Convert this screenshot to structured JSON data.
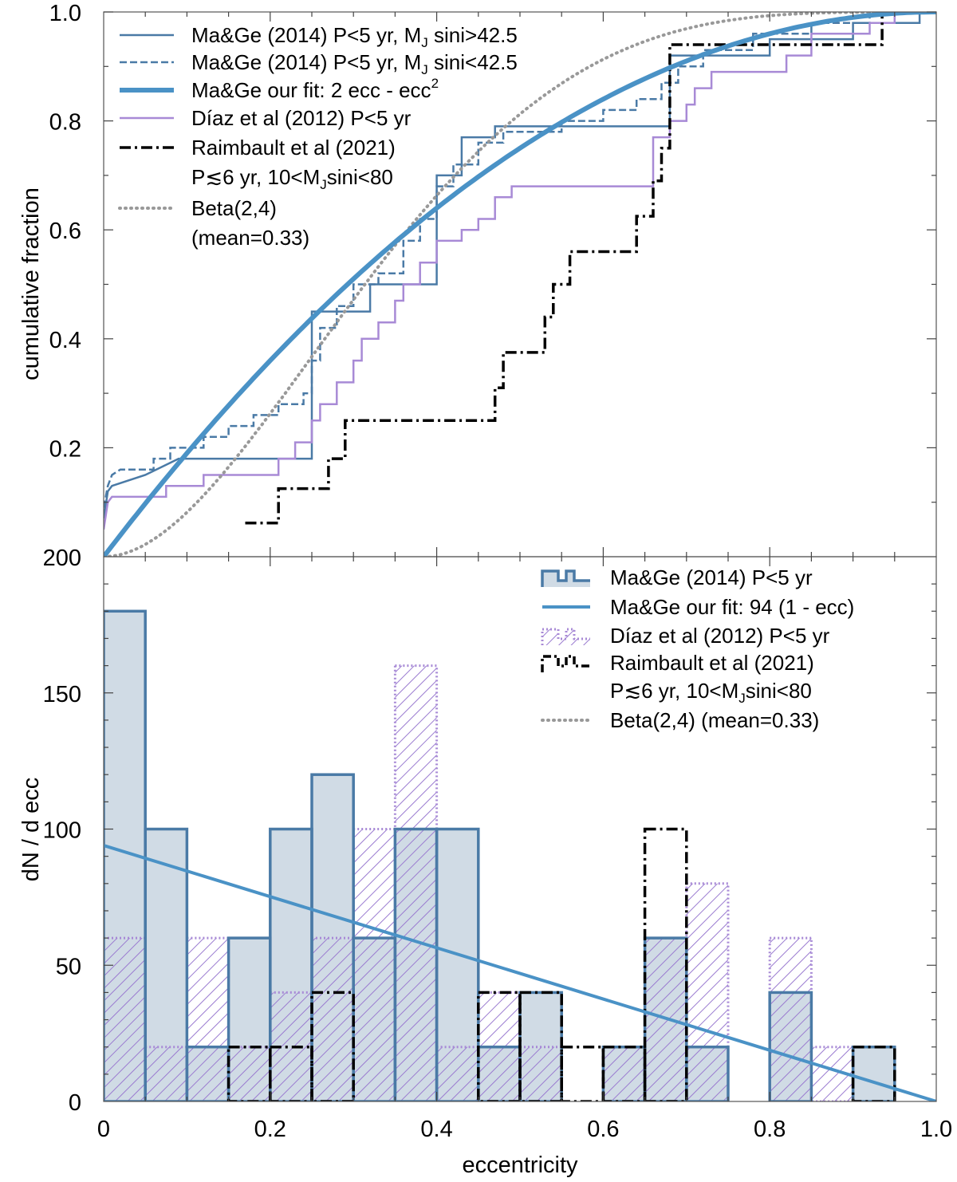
{
  "chart_data": [
    {
      "type": "line",
      "panel": "top",
      "ylabel": "cumulative fraction",
      "xlim": [
        0,
        1
      ],
      "ylim": [
        0,
        1
      ],
      "yticks": [
        "1.0",
        "0.8",
        "0.6",
        "0.4",
        "0.2"
      ],
      "legend_position": "top-left",
      "legend": [
        {
          "id": "mage_hi",
          "text": "Ma&Ge (2014)     P<5 yr, M",
          "sub": "J",
          "text2": " sini>42.5"
        },
        {
          "id": "mage_lo",
          "text": "Ma&Ge (2014)     P<5 yr, M",
          "sub": "J",
          "text2": " sini<42.5"
        },
        {
          "id": "mage_fit",
          "text": "Ma&Ge our fit: 2 ecc - ecc",
          "sup": "2"
        },
        {
          "id": "diaz",
          "text": "Díaz et al (2012) P<5 yr"
        },
        {
          "id": "raim",
          "text": "Raimbault et al (2021)"
        },
        {
          "id": "raim2",
          "text": "P≲6 yr, 10<M",
          "sub": "J",
          "text2": "sini<80"
        },
        {
          "id": "beta",
          "text": "Beta(2,4)"
        },
        {
          "id": "beta2",
          "text": "(mean=0.33)"
        }
      ],
      "series": [
        {
          "name": "Ma&Ge (2014) P<5 yr, MJ sini>42.5",
          "style": "solid",
          "color": "#4a7aa6",
          "steps": [
            [
              0,
              0.07
            ],
            [
              0.005,
              0.12
            ],
            [
              0.01,
              0.13
            ],
            [
              0.05,
              0.15
            ],
            [
              0.09,
              0.18
            ],
            [
              0.25,
              0.18
            ],
            [
              0.25,
              0.45
            ],
            [
              0.32,
              0.45
            ],
            [
              0.32,
              0.5
            ],
            [
              0.4,
              0.5
            ],
            [
              0.4,
              0.56
            ],
            [
              0.4,
              0.7
            ],
            [
              0.43,
              0.7
            ],
            [
              0.43,
              0.77
            ],
            [
              0.47,
              0.77
            ],
            [
              0.47,
              0.79
            ],
            [
              0.68,
              0.79
            ],
            [
              0.68,
              0.92
            ],
            [
              0.8,
              0.92
            ],
            [
              0.8,
              0.95
            ],
            [
              0.9,
              0.95
            ],
            [
              0.9,
              0.98
            ],
            [
              0.98,
              0.98
            ],
            [
              0.98,
              1.0
            ],
            [
              1.0,
              1.0
            ]
          ]
        },
        {
          "name": "Ma&Ge (2014) P<5 yr, MJ sini<42.5",
          "style": "dashed",
          "color": "#4a7aa6",
          "steps": [
            [
              0,
              0.09
            ],
            [
              0.005,
              0.13
            ],
            [
              0.01,
              0.15
            ],
            [
              0.02,
              0.16
            ],
            [
              0.06,
              0.16
            ],
            [
              0.06,
              0.18
            ],
            [
              0.08,
              0.18
            ],
            [
              0.08,
              0.2
            ],
            [
              0.12,
              0.2
            ],
            [
              0.12,
              0.22
            ],
            [
              0.15,
              0.22
            ],
            [
              0.15,
              0.24
            ],
            [
              0.18,
              0.24
            ],
            [
              0.18,
              0.26
            ],
            [
              0.21,
              0.26
            ],
            [
              0.21,
              0.28
            ],
            [
              0.24,
              0.28
            ],
            [
              0.24,
              0.3
            ],
            [
              0.25,
              0.3
            ],
            [
              0.25,
              0.36
            ],
            [
              0.26,
              0.36
            ],
            [
              0.26,
              0.42
            ],
            [
              0.28,
              0.42
            ],
            [
              0.28,
              0.46
            ],
            [
              0.3,
              0.46
            ],
            [
              0.3,
              0.5
            ],
            [
              0.33,
              0.5
            ],
            [
              0.33,
              0.52
            ],
            [
              0.36,
              0.52
            ],
            [
              0.36,
              0.58
            ],
            [
              0.38,
              0.58
            ],
            [
              0.38,
              0.62
            ],
            [
              0.4,
              0.62
            ],
            [
              0.4,
              0.68
            ],
            [
              0.42,
              0.68
            ],
            [
              0.42,
              0.72
            ],
            [
              0.45,
              0.72
            ],
            [
              0.45,
              0.76
            ],
            [
              0.48,
              0.76
            ],
            [
              0.48,
              0.78
            ],
            [
              0.55,
              0.78
            ],
            [
              0.55,
              0.8
            ],
            [
              0.6,
              0.8
            ],
            [
              0.6,
              0.82
            ],
            [
              0.64,
              0.82
            ],
            [
              0.64,
              0.84
            ],
            [
              0.67,
              0.84
            ],
            [
              0.67,
              0.87
            ],
            [
              0.69,
              0.87
            ],
            [
              0.69,
              0.9
            ],
            [
              0.72,
              0.9
            ],
            [
              0.72,
              0.93
            ],
            [
              0.78,
              0.93
            ],
            [
              0.78,
              0.96
            ],
            [
              0.85,
              0.96
            ],
            [
              0.85,
              0.98
            ],
            [
              0.92,
              0.98
            ],
            [
              0.92,
              1.0
            ],
            [
              1.0,
              1.0
            ]
          ]
        },
        {
          "name": "Díaz et al (2012) P<5 yr",
          "style": "solid",
          "color": "#a88ad6",
          "steps": [
            [
              0,
              0.05
            ],
            [
              0.005,
              0.1
            ],
            [
              0.01,
              0.11
            ],
            [
              0.075,
              0.11
            ],
            [
              0.075,
              0.13
            ],
            [
              0.12,
              0.13
            ],
            [
              0.12,
              0.15
            ],
            [
              0.21,
              0.15
            ],
            [
              0.21,
              0.18
            ],
            [
              0.23,
              0.18
            ],
            [
              0.23,
              0.21
            ],
            [
              0.25,
              0.21
            ],
            [
              0.25,
              0.25
            ],
            [
              0.26,
              0.25
            ],
            [
              0.26,
              0.28
            ],
            [
              0.28,
              0.28
            ],
            [
              0.28,
              0.32
            ],
            [
              0.3,
              0.32
            ],
            [
              0.3,
              0.36
            ],
            [
              0.31,
              0.36
            ],
            [
              0.31,
              0.4
            ],
            [
              0.33,
              0.4
            ],
            [
              0.33,
              0.43
            ],
            [
              0.35,
              0.43
            ],
            [
              0.35,
              0.47
            ],
            [
              0.36,
              0.47
            ],
            [
              0.36,
              0.5
            ],
            [
              0.38,
              0.5
            ],
            [
              0.38,
              0.54
            ],
            [
              0.4,
              0.54
            ],
            [
              0.4,
              0.58
            ],
            [
              0.43,
              0.58
            ],
            [
              0.43,
              0.6
            ],
            [
              0.45,
              0.6
            ],
            [
              0.45,
              0.62
            ],
            [
              0.47,
              0.62
            ],
            [
              0.47,
              0.66
            ],
            [
              0.49,
              0.66
            ],
            [
              0.49,
              0.68
            ],
            [
              0.66,
              0.68
            ],
            [
              0.66,
              0.77
            ],
            [
              0.68,
              0.77
            ],
            [
              0.68,
              0.8
            ],
            [
              0.7,
              0.8
            ],
            [
              0.7,
              0.83
            ],
            [
              0.71,
              0.83
            ],
            [
              0.71,
              0.86
            ],
            [
              0.73,
              0.86
            ],
            [
              0.73,
              0.89
            ],
            [
              0.82,
              0.89
            ],
            [
              0.82,
              0.92
            ],
            [
              0.85,
              0.92
            ],
            [
              0.85,
              0.96
            ],
            [
              0.92,
              0.96
            ],
            [
              0.92,
              0.98
            ],
            [
              0.95,
              0.98
            ],
            [
              0.95,
              1.0
            ],
            [
              1.0,
              1.0
            ]
          ]
        },
        {
          "name": "Raimbault et al (2021)",
          "style": "dashdot",
          "color": "#000000",
          "steps": [
            [
              0.17,
              0.062
            ],
            [
              0.21,
              0.062
            ],
            [
              0.21,
              0.125
            ],
            [
              0.27,
              0.125
            ],
            [
              0.27,
              0.18
            ],
            [
              0.29,
              0.18
            ],
            [
              0.29,
              0.25
            ],
            [
              0.47,
              0.25
            ],
            [
              0.47,
              0.31
            ],
            [
              0.48,
              0.31
            ],
            [
              0.48,
              0.375
            ],
            [
              0.53,
              0.375
            ],
            [
              0.53,
              0.44
            ],
            [
              0.54,
              0.44
            ],
            [
              0.54,
              0.5
            ],
            [
              0.56,
              0.5
            ],
            [
              0.56,
              0.56
            ],
            [
              0.64,
              0.56
            ],
            [
              0.64,
              0.625
            ],
            [
              0.66,
              0.625
            ],
            [
              0.66,
              0.69
            ],
            [
              0.67,
              0.69
            ],
            [
              0.67,
              0.75
            ],
            [
              0.68,
              0.75
            ],
            [
              0.68,
              0.94
            ],
            [
              0.935,
              0.94
            ],
            [
              0.935,
              1.0
            ]
          ]
        },
        {
          "name": "Ma&Ge our fit: 2 ecc - ecc^2",
          "style": "thick",
          "color": "#4a92c6",
          "function": "2x-x^2"
        },
        {
          "name": "Beta(2,4)",
          "style": "dotted",
          "color": "#999999",
          "function": "betacdf(2,4)"
        }
      ]
    },
    {
      "type": "bar",
      "panel": "bottom",
      "ylabel": "dN / d ecc",
      "xlabel": "eccentricity",
      "xlim": [
        0,
        1
      ],
      "ylim": [
        0,
        200
      ],
      "yticks": [
        "200",
        "150",
        "100",
        "50",
        "0"
      ],
      "xticks": [
        "0",
        "0.2",
        "0.4",
        "0.6",
        "0.8",
        "1.0"
      ],
      "bin_width": 0.05,
      "legend_position": "top-right",
      "legend": [
        {
          "id": "mage",
          "text": "Ma&Ge (2014)     P<5 yr"
        },
        {
          "id": "fit",
          "text": "Ma&Ge our fit:       94 (1 - ecc)"
        },
        {
          "id": "diaz",
          "text": "Díaz et al (2012) P<5 yr"
        },
        {
          "id": "raim",
          "text": "Raimbault et al (2021)"
        },
        {
          "id": "raim2",
          "text": "P≲6 yr, 10<M",
          "sub": "J",
          "text2": "sini<80"
        },
        {
          "id": "beta",
          "text": "Beta(2,4) (mean=0.33)"
        }
      ],
      "series": [
        {
          "name": "Ma&Ge (2014) P<5 yr",
          "color": "#4a7aa6",
          "fill": "#d0dbe5",
          "bins_start": [
            0,
            0.05,
            0.1,
            0.15,
            0.2,
            0.25,
            0.3,
            0.35,
            0.4,
            0.45,
            0.5,
            0.55,
            0.6,
            0.65,
            0.7,
            0.75,
            0.8,
            0.85,
            0.9,
            0.95
          ],
          "values": [
            180,
            100,
            20,
            60,
            100,
            120,
            60,
            100,
            100,
            20,
            40,
            0,
            20,
            60,
            20,
            0,
            40,
            0,
            20,
            0
          ]
        },
        {
          "name": "Díaz et al (2012) P<5 yr",
          "color": "#a88ad6",
          "bins_start": [
            0,
            0.05,
            0.1,
            0.15,
            0.2,
            0.25,
            0.3,
            0.35,
            0.4,
            0.45,
            0.5,
            0.55,
            0.6,
            0.65,
            0.7,
            0.75,
            0.8,
            0.85,
            0.9,
            0.95
          ],
          "values": [
            60,
            20,
            60,
            20,
            40,
            60,
            100,
            160,
            20,
            40,
            20,
            0,
            20,
            60,
            80,
            0,
            60,
            20,
            0,
            0
          ]
        },
        {
          "name": "Raimbault et al (2021)",
          "color": "#000000",
          "bins_start": [
            0,
            0.05,
            0.1,
            0.15,
            0.2,
            0.25,
            0.3,
            0.35,
            0.4,
            0.45,
            0.5,
            0.55,
            0.6,
            0.65,
            0.7,
            0.75,
            0.8,
            0.85,
            0.9,
            0.95
          ],
          "values": [
            0,
            0,
            0,
            20,
            20,
            40,
            0,
            0,
            0,
            40,
            40,
            20,
            20,
            100,
            0,
            0,
            0,
            0,
            20,
            0
          ]
        },
        {
          "name": "Ma&Ge our fit: 94 (1 - ecc)",
          "color": "#4a92c6",
          "function": "94*(1-x)"
        }
      ]
    }
  ]
}
